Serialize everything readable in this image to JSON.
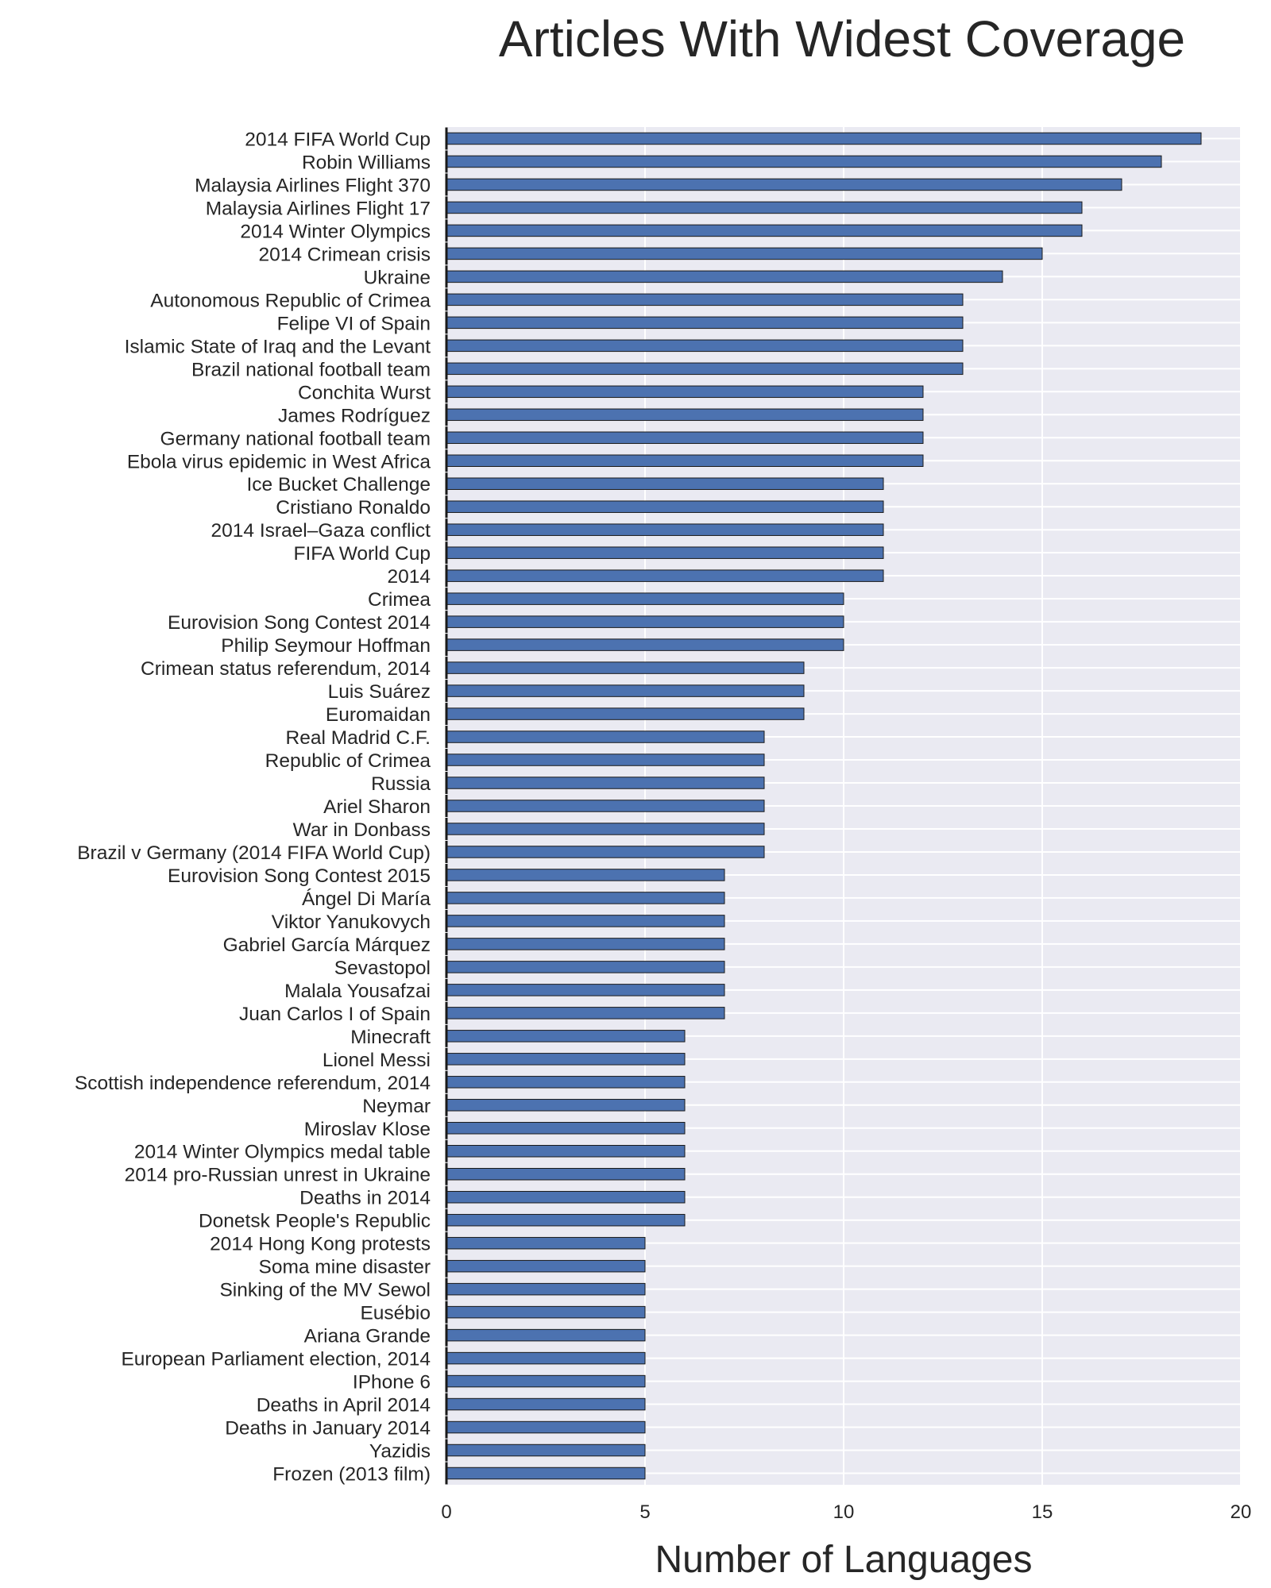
{
  "chart_data": {
    "type": "bar",
    "orientation": "horizontal",
    "title": "Articles With Widest Coverage",
    "xlabel": "Number of Languages",
    "ylabel": "",
    "xlim": [
      0,
      20
    ],
    "xticks": [
      "0",
      "5",
      "10",
      "15",
      "20"
    ],
    "grid": true,
    "legend": "none",
    "colors": {
      "bar": "#4c72b0",
      "plot_bg": "#eaeaf2",
      "grid": "#ffffff",
      "text": "#262626"
    },
    "categories": [
      "2014 FIFA World Cup",
      "Robin Williams",
      "Malaysia Airlines Flight 370",
      "Malaysia Airlines Flight 17",
      "2014 Winter Olympics",
      "2014 Crimean crisis",
      "Ukraine",
      "Autonomous Republic of Crimea",
      "Felipe VI of Spain",
      "Islamic State of Iraq and the Levant",
      "Brazil national football team",
      "Conchita Wurst",
      "James Rodríguez",
      "Germany national football team",
      "Ebola virus epidemic in West Africa",
      "Ice Bucket Challenge",
      "Cristiano Ronaldo",
      "2014 Israel–Gaza conflict",
      "FIFA World Cup",
      "2014",
      "Crimea",
      "Eurovision Song Contest 2014",
      "Philip Seymour Hoffman",
      "Crimean status referendum, 2014",
      "Luis Suárez",
      "Euromaidan",
      "Real Madrid C.F.",
      "Republic of Crimea",
      "Russia",
      "Ariel Sharon",
      "War in Donbass",
      "Brazil v Germany (2014 FIFA World Cup)",
      "Eurovision Song Contest 2015",
      "Ángel Di María",
      "Viktor Yanukovych",
      "Gabriel García Márquez",
      "Sevastopol",
      "Malala Yousafzai",
      "Juan Carlos I of Spain",
      "Minecraft",
      "Lionel Messi",
      "Scottish independence referendum, 2014",
      "Neymar",
      "Miroslav Klose",
      "2014 Winter Olympics medal table",
      "2014 pro-Russian unrest in Ukraine",
      "Deaths in 2014",
      "Donetsk People's Republic",
      "2014 Hong Kong protests",
      "Soma mine disaster",
      "Sinking of the MV Sewol",
      "Eusébio",
      "Ariana Grande",
      "European Parliament election, 2014",
      "IPhone 6",
      "Deaths in April 2014",
      "Deaths in January 2014",
      "Yazidis",
      "Frozen (2013 film)"
    ],
    "values": [
      19,
      18,
      17,
      16,
      16,
      15,
      14,
      13,
      13,
      13,
      13,
      12,
      12,
      12,
      12,
      11,
      11,
      11,
      11,
      11,
      10,
      10,
      10,
      9,
      9,
      9,
      8,
      8,
      8,
      8,
      8,
      8,
      7,
      7,
      7,
      7,
      7,
      7,
      7,
      6,
      6,
      6,
      6,
      6,
      6,
      6,
      6,
      6,
      5,
      5,
      5,
      5,
      5,
      5,
      5,
      5,
      5,
      5,
      5
    ]
  }
}
